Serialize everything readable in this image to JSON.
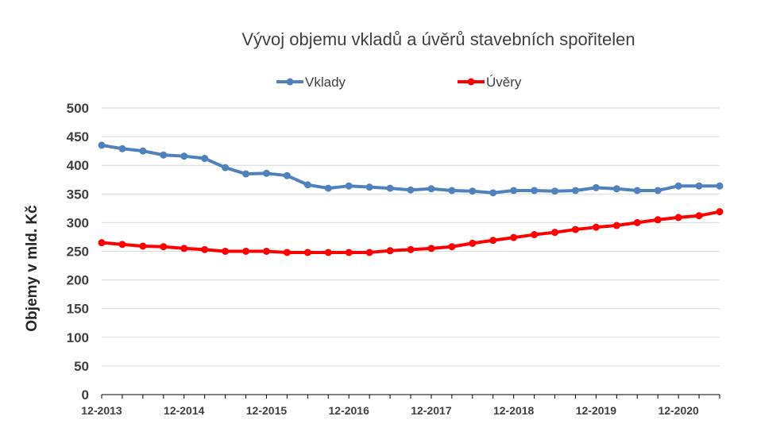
{
  "chart_data": {
    "type": "line",
    "title": "Vývoj objemu vkladů a úvěrů stavebních spořitelen",
    "ylabel": "Objemy v mld. Kč",
    "xlabel": "",
    "ylim": [
      0,
      500
    ],
    "yticks": [
      0,
      50,
      100,
      150,
      200,
      250,
      300,
      350,
      400,
      450,
      500
    ],
    "x_tick_labels": [
      "12-2013",
      "12-2014",
      "12-2015",
      "12-2016",
      "12-2017",
      "12-2018",
      "12-2019",
      "12-2020"
    ],
    "legend_position": "top",
    "grid": true,
    "x": [
      "12-2013",
      "3-2014",
      "6-2014",
      "9-2014",
      "12-2014",
      "3-2015",
      "6-2015",
      "9-2015",
      "12-2015",
      "3-2016",
      "6-2016",
      "9-2016",
      "12-2016",
      "3-2017",
      "6-2017",
      "9-2017",
      "12-2017",
      "3-2018",
      "6-2018",
      "9-2018",
      "12-2018",
      "3-2019",
      "6-2019",
      "9-2019",
      "12-2019",
      "3-2020",
      "6-2020",
      "9-2020",
      "12-2020",
      "3-2021",
      "6-2021"
    ],
    "series": [
      {
        "name": "Vklady",
        "color": "#4f81bd",
        "values": [
          435,
          429,
          425,
          418,
          416,
          412,
          396,
          385,
          386,
          382,
          366,
          360,
          364,
          362,
          360,
          357,
          359,
          356,
          355,
          352,
          356,
          356,
          355,
          356,
          361,
          359,
          356,
          356,
          364,
          364,
          364
        ]
      },
      {
        "name": "Úvěry",
        "color": "#ff0000",
        "values": [
          265,
          262,
          259,
          258,
          255,
          253,
          250,
          250,
          250,
          248,
          248,
          248,
          248,
          248,
          251,
          253,
          255,
          258,
          264,
          269,
          274,
          279,
          283,
          288,
          292,
          295,
          300,
          305,
          309,
          312,
          319
        ]
      }
    ]
  }
}
